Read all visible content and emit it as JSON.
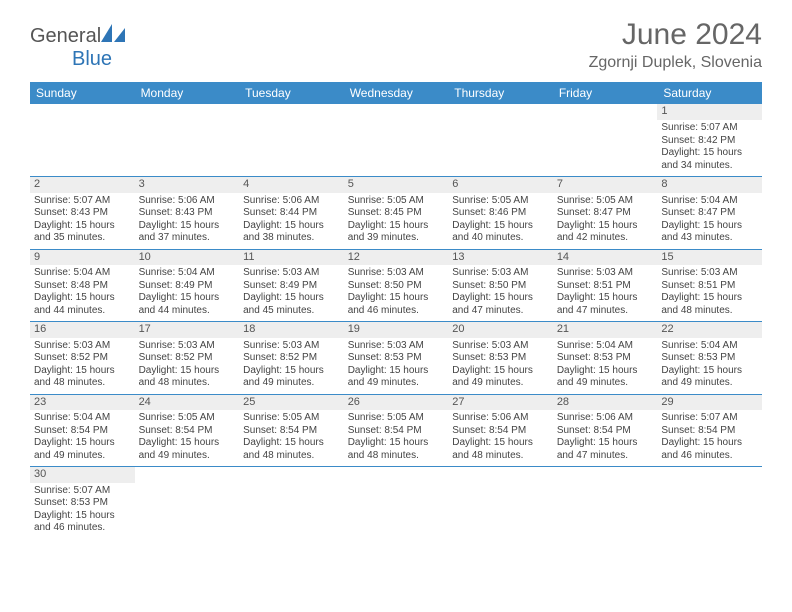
{
  "brand": {
    "name_part1": "General",
    "name_part2": "Blue"
  },
  "title": "June 2024",
  "location": "Zgornji Duplek, Slovenia",
  "colors": {
    "header_bg": "#3b8bc8",
    "band_bg": "#eeeeee",
    "rule": "#3b8bc8",
    "text": "#444444",
    "title_text": "#666666"
  },
  "daynames": [
    "Sunday",
    "Monday",
    "Tuesday",
    "Wednesday",
    "Thursday",
    "Friday",
    "Saturday"
  ],
  "weeks": [
    {
      "nums": [
        "",
        "",
        "",
        "",
        "",
        "",
        "1"
      ],
      "details": [
        null,
        null,
        null,
        null,
        null,
        null,
        {
          "sunrise": "Sunrise: 5:07 AM",
          "sunset": "Sunset: 8:42 PM",
          "dl1": "Daylight: 15 hours",
          "dl2": "and 34 minutes."
        }
      ]
    },
    {
      "nums": [
        "2",
        "3",
        "4",
        "5",
        "6",
        "7",
        "8"
      ],
      "details": [
        {
          "sunrise": "Sunrise: 5:07 AM",
          "sunset": "Sunset: 8:43 PM",
          "dl1": "Daylight: 15 hours",
          "dl2": "and 35 minutes."
        },
        {
          "sunrise": "Sunrise: 5:06 AM",
          "sunset": "Sunset: 8:43 PM",
          "dl1": "Daylight: 15 hours",
          "dl2": "and 37 minutes."
        },
        {
          "sunrise": "Sunrise: 5:06 AM",
          "sunset": "Sunset: 8:44 PM",
          "dl1": "Daylight: 15 hours",
          "dl2": "and 38 minutes."
        },
        {
          "sunrise": "Sunrise: 5:05 AM",
          "sunset": "Sunset: 8:45 PM",
          "dl1": "Daylight: 15 hours",
          "dl2": "and 39 minutes."
        },
        {
          "sunrise": "Sunrise: 5:05 AM",
          "sunset": "Sunset: 8:46 PM",
          "dl1": "Daylight: 15 hours",
          "dl2": "and 40 minutes."
        },
        {
          "sunrise": "Sunrise: 5:05 AM",
          "sunset": "Sunset: 8:47 PM",
          "dl1": "Daylight: 15 hours",
          "dl2": "and 42 minutes."
        },
        {
          "sunrise": "Sunrise: 5:04 AM",
          "sunset": "Sunset: 8:47 PM",
          "dl1": "Daylight: 15 hours",
          "dl2": "and 43 minutes."
        }
      ]
    },
    {
      "nums": [
        "9",
        "10",
        "11",
        "12",
        "13",
        "14",
        "15"
      ],
      "details": [
        {
          "sunrise": "Sunrise: 5:04 AM",
          "sunset": "Sunset: 8:48 PM",
          "dl1": "Daylight: 15 hours",
          "dl2": "and 44 minutes."
        },
        {
          "sunrise": "Sunrise: 5:04 AM",
          "sunset": "Sunset: 8:49 PM",
          "dl1": "Daylight: 15 hours",
          "dl2": "and 44 minutes."
        },
        {
          "sunrise": "Sunrise: 5:03 AM",
          "sunset": "Sunset: 8:49 PM",
          "dl1": "Daylight: 15 hours",
          "dl2": "and 45 minutes."
        },
        {
          "sunrise": "Sunrise: 5:03 AM",
          "sunset": "Sunset: 8:50 PM",
          "dl1": "Daylight: 15 hours",
          "dl2": "and 46 minutes."
        },
        {
          "sunrise": "Sunrise: 5:03 AM",
          "sunset": "Sunset: 8:50 PM",
          "dl1": "Daylight: 15 hours",
          "dl2": "and 47 minutes."
        },
        {
          "sunrise": "Sunrise: 5:03 AM",
          "sunset": "Sunset: 8:51 PM",
          "dl1": "Daylight: 15 hours",
          "dl2": "and 47 minutes."
        },
        {
          "sunrise": "Sunrise: 5:03 AM",
          "sunset": "Sunset: 8:51 PM",
          "dl1": "Daylight: 15 hours",
          "dl2": "and 48 minutes."
        }
      ]
    },
    {
      "nums": [
        "16",
        "17",
        "18",
        "19",
        "20",
        "21",
        "22"
      ],
      "details": [
        {
          "sunrise": "Sunrise: 5:03 AM",
          "sunset": "Sunset: 8:52 PM",
          "dl1": "Daylight: 15 hours",
          "dl2": "and 48 minutes."
        },
        {
          "sunrise": "Sunrise: 5:03 AM",
          "sunset": "Sunset: 8:52 PM",
          "dl1": "Daylight: 15 hours",
          "dl2": "and 48 minutes."
        },
        {
          "sunrise": "Sunrise: 5:03 AM",
          "sunset": "Sunset: 8:52 PM",
          "dl1": "Daylight: 15 hours",
          "dl2": "and 49 minutes."
        },
        {
          "sunrise": "Sunrise: 5:03 AM",
          "sunset": "Sunset: 8:53 PM",
          "dl1": "Daylight: 15 hours",
          "dl2": "and 49 minutes."
        },
        {
          "sunrise": "Sunrise: 5:03 AM",
          "sunset": "Sunset: 8:53 PM",
          "dl1": "Daylight: 15 hours",
          "dl2": "and 49 minutes."
        },
        {
          "sunrise": "Sunrise: 5:04 AM",
          "sunset": "Sunset: 8:53 PM",
          "dl1": "Daylight: 15 hours",
          "dl2": "and 49 minutes."
        },
        {
          "sunrise": "Sunrise: 5:04 AM",
          "sunset": "Sunset: 8:53 PM",
          "dl1": "Daylight: 15 hours",
          "dl2": "and 49 minutes."
        }
      ]
    },
    {
      "nums": [
        "23",
        "24",
        "25",
        "26",
        "27",
        "28",
        "29"
      ],
      "details": [
        {
          "sunrise": "Sunrise: 5:04 AM",
          "sunset": "Sunset: 8:54 PM",
          "dl1": "Daylight: 15 hours",
          "dl2": "and 49 minutes."
        },
        {
          "sunrise": "Sunrise: 5:05 AM",
          "sunset": "Sunset: 8:54 PM",
          "dl1": "Daylight: 15 hours",
          "dl2": "and 49 minutes."
        },
        {
          "sunrise": "Sunrise: 5:05 AM",
          "sunset": "Sunset: 8:54 PM",
          "dl1": "Daylight: 15 hours",
          "dl2": "and 48 minutes."
        },
        {
          "sunrise": "Sunrise: 5:05 AM",
          "sunset": "Sunset: 8:54 PM",
          "dl1": "Daylight: 15 hours",
          "dl2": "and 48 minutes."
        },
        {
          "sunrise": "Sunrise: 5:06 AM",
          "sunset": "Sunset: 8:54 PM",
          "dl1": "Daylight: 15 hours",
          "dl2": "and 48 minutes."
        },
        {
          "sunrise": "Sunrise: 5:06 AM",
          "sunset": "Sunset: 8:54 PM",
          "dl1": "Daylight: 15 hours",
          "dl2": "and 47 minutes."
        },
        {
          "sunrise": "Sunrise: 5:07 AM",
          "sunset": "Sunset: 8:54 PM",
          "dl1": "Daylight: 15 hours",
          "dl2": "and 46 minutes."
        }
      ]
    },
    {
      "nums": [
        "30",
        "",
        "",
        "",
        "",
        "",
        ""
      ],
      "details": [
        {
          "sunrise": "Sunrise: 5:07 AM",
          "sunset": "Sunset: 8:53 PM",
          "dl1": "Daylight: 15 hours",
          "dl2": "and 46 minutes."
        },
        null,
        null,
        null,
        null,
        null,
        null
      ]
    }
  ]
}
